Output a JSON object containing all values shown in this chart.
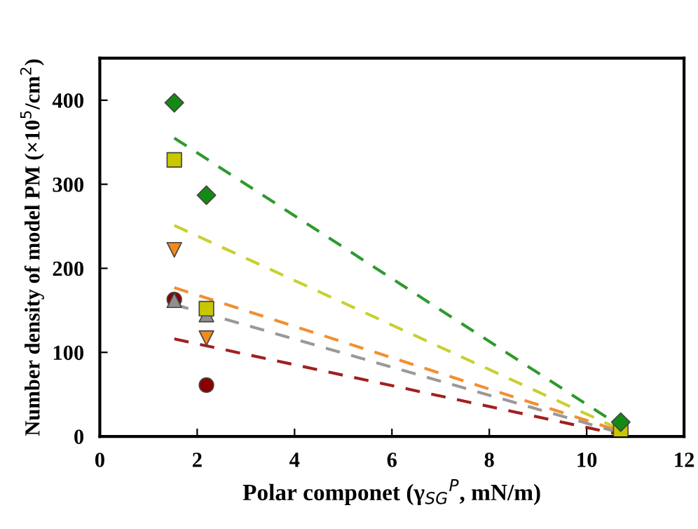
{
  "chart_data": {
    "type": "scatter",
    "xlabel": "Polar componet (γ$_{SG}$$^{P}$, mN/m)",
    "ylabel": "Number density of model PM (×10$^{5}$/cm$^{2}$)",
    "xlim": [
      0,
      12
    ],
    "ylim": [
      0,
      450
    ],
    "xticks": [
      0,
      2,
      4,
      6,
      8,
      10,
      12
    ],
    "yticks": [
      0,
      100,
      200,
      300,
      400
    ],
    "grid": false,
    "legend": false,
    "series": [
      {
        "type": "line",
        "line_style": "dashed",
        "marker": "none",
        "color": "#2e9a2e",
        "x": [
          1.53,
          10.7
        ],
        "values": [
          355,
          12
        ]
      },
      {
        "type": "line",
        "line_style": "dashed",
        "marker": "none",
        "color": "#c8d030",
        "x": [
          1.53,
          10.7
        ],
        "values": [
          251,
          8
        ]
      },
      {
        "type": "line",
        "line_style": "dashed",
        "marker": "none",
        "color": "#f09030",
        "x": [
          1.53,
          10.7
        ],
        "values": [
          177,
          6
        ]
      },
      {
        "type": "line",
        "line_style": "dashed",
        "marker": "none",
        "color": "#999999",
        "x": [
          1.53,
          10.7
        ],
        "values": [
          157,
          4
        ]
      },
      {
        "type": "line",
        "line_style": "dashed",
        "marker": "none",
        "color": "#a02020",
        "x": [
          1.53,
          10.7
        ],
        "values": [
          116,
          2
        ]
      },
      {
        "marker": "circle",
        "color": "#8b0000",
        "x": [
          1.53,
          2.19
        ],
        "values": [
          163,
          61
        ]
      },
      {
        "marker": "triangle",
        "color": "#909090",
        "x": [
          1.53,
          2.19
        ],
        "values": [
          162,
          145
        ]
      },
      {
        "marker": "triangle_down",
        "color": "#f08a1e",
        "x": [
          1.53,
          2.19
        ],
        "values": [
          222,
          117
        ]
      },
      {
        "marker": "square",
        "color": "#c8c800",
        "x": [
          1.53,
          2.19,
          10.7
        ],
        "values": [
          329,
          152,
          8
        ]
      },
      {
        "marker": "diamond",
        "color": "#138a13",
        "x": [
          1.53,
          2.19,
          10.7
        ],
        "values": [
          397,
          287,
          17
        ]
      }
    ]
  }
}
